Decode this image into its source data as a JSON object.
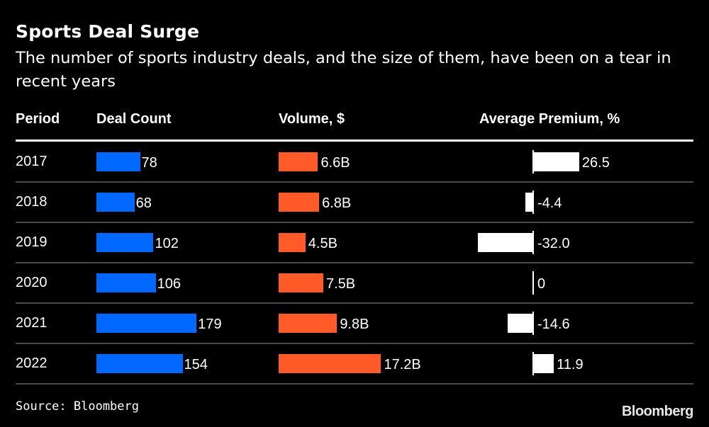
{
  "chart_data": {
    "type": "table",
    "title": "Sports Deal Surge",
    "subtitle": "The number of sports industry deals, and the size of them, have been on a tear in recent years",
    "columns": [
      "Period",
      "Deal Count",
      "Volume, $",
      "Average Premium, %"
    ],
    "categories": [
      "2017",
      "2018",
      "2019",
      "2020",
      "2021",
      "2022"
    ],
    "series": [
      {
        "name": "Deal Count",
        "type": "bar",
        "color": "#0068ff",
        "values": [
          78,
          68,
          102,
          106,
          179,
          154
        ],
        "labels": [
          "78",
          "68",
          "102",
          "106",
          "179",
          "154"
        ]
      },
      {
        "name": "Volume, $",
        "type": "bar",
        "color": "#ff5a28",
        "unit": "billion USD",
        "values": [
          6.6,
          6.8,
          4.5,
          7.5,
          9.8,
          17.2
        ],
        "labels": [
          "6.6B",
          "6.8B",
          "4.5B",
          "7.5B",
          "9.8B",
          "17.2B"
        ]
      },
      {
        "name": "Average Premium, %",
        "type": "diverging-bar",
        "color": "#ffffff",
        "values": [
          26.5,
          -4.4,
          -32.0,
          0,
          -14.6,
          11.9
        ],
        "labels": [
          "26.5",
          "-4.4",
          "-32.0",
          "0",
          "-14.6",
          "11.9"
        ]
      }
    ],
    "source": "Source: Bloomberg",
    "grid": false,
    "legend": "none"
  },
  "branding": {
    "logo_text": "Bloomberg"
  }
}
